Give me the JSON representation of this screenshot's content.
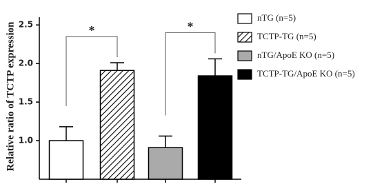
{
  "chart_data": {
    "type": "bar",
    "y_label": "Relative ratio of TCTP expression",
    "ylim": [
      0.5,
      2.6
    ],
    "yticks": [
      {
        "value": 1.0,
        "label": "1.0"
      },
      1.5,
      {
        "value": 2.0,
        "label": "2.0"
      },
      2.5
    ],
    "series": [
      {
        "name": "nTG  (n=5)",
        "color": "#ffffff",
        "values": [
          1.0
        ],
        "errors": [
          0.18
        ]
      },
      {
        "name": "TCTP-TG  (n=5)",
        "color": "#ffffff",
        "hatch": true,
        "values": [
          1.91
        ],
        "errors": [
          0.1
        ]
      },
      {
        "name": "nTG/ApoE KO  (n=5)",
        "color": "#aaaaaa",
        "values": [
          0.91
        ],
        "errors": [
          0.15
        ]
      },
      {
        "name": "TCTP-TG/ApoE KO  (n=5)",
        "color": "#000000",
        "values": [
          1.84
        ],
        "errors": [
          0.22
        ]
      }
    ],
    "annotations": [
      "*",
      "*"
    ]
  }
}
